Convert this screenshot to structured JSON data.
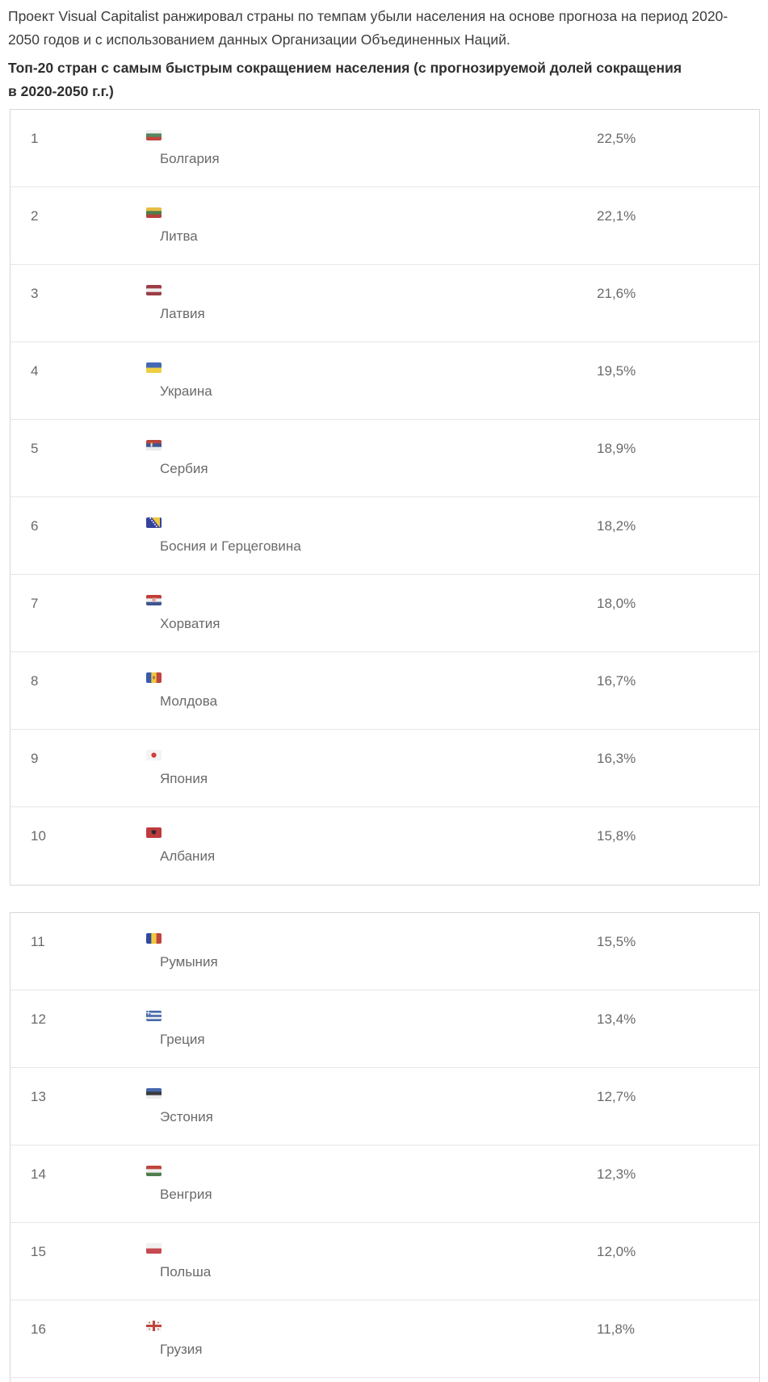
{
  "intro": "Проект Visual Capitalist ранжировал страны по темпам убыли населения на основе прогноза на период 2020-2050 годов и с использованием данных Организации Объединенных Наций.",
  "heading": "Топ-20 стран с самым быстрым сокращением населения (с прогнозируемой долей сокращения в 2020-2050 г.г.)",
  "table1": {
    "rows": [
      {
        "rank": "1",
        "flag": "bulgaria",
        "country": "Болгария",
        "percent": "22,5%"
      },
      {
        "rank": "2",
        "flag": "lithuania",
        "country": "Литва",
        "percent": "22,1%"
      },
      {
        "rank": "3",
        "flag": "latvia",
        "country": "Латвия",
        "percent": "21,6%"
      },
      {
        "rank": "4",
        "flag": "ukraine",
        "country": "Украина",
        "percent": "19,5%"
      },
      {
        "rank": "5",
        "flag": "serbia",
        "country": "Сербия",
        "percent": "18,9%"
      },
      {
        "rank": "6",
        "flag": "bosnia",
        "country": "Босния и Герцеговина",
        "percent": "18,2%"
      },
      {
        "rank": "7",
        "flag": "croatia",
        "country": "Хорватия",
        "percent": "18,0%"
      },
      {
        "rank": "8",
        "flag": "moldova",
        "country": "Молдова",
        "percent": "16,7%"
      },
      {
        "rank": "9",
        "flag": "japan",
        "country": "Япония",
        "percent": "16,3%"
      },
      {
        "rank": "10",
        "flag": "albania",
        "country": "Албания",
        "percent": "15,8%"
      }
    ]
  },
  "table2": {
    "rows": [
      {
        "rank": "11",
        "flag": "romania",
        "country": "Румыния",
        "percent": "15,5%"
      },
      {
        "rank": "12",
        "flag": "greece",
        "country": "Греция",
        "percent": "13,4%"
      },
      {
        "rank": "13",
        "flag": "estonia",
        "country": "Эстония",
        "percent": "12,7%"
      },
      {
        "rank": "14",
        "flag": "hungary",
        "country": "Венгрия",
        "percent": "12,3%"
      },
      {
        "rank": "15",
        "flag": "poland",
        "country": "Польша",
        "percent": "12,0%"
      },
      {
        "rank": "16",
        "flag": "georgia",
        "country": "Грузия",
        "percent": "11,8%"
      }
    ]
  },
  "chart_data": {
    "type": "table",
    "title": "Топ-20 стран с самым быстрым сокращением населения (с прогнозируемой долей сокращения в 2020-2050 г.г.)",
    "categories": [
      "Болгария",
      "Литва",
      "Латвия",
      "Украина",
      "Сербия",
      "Босния и Герцеговина",
      "Хорватия",
      "Молдова",
      "Япония",
      "Албания",
      "Румыния",
      "Греция",
      "Эстония",
      "Венгрия",
      "Польша",
      "Грузия"
    ],
    "values": [
      22.5,
      22.1,
      21.6,
      19.5,
      18.9,
      18.2,
      18.0,
      16.7,
      16.3,
      15.8,
      15.5,
      13.4,
      12.7,
      12.3,
      12.0,
      11.8
    ],
    "value_format": "comma-decimal percent"
  },
  "colors": {
    "body_text": "#3c3c3c",
    "table_text": "#6a6a6a",
    "table_border": "#d8d8d8",
    "row_divider": "#e7e7e7"
  }
}
